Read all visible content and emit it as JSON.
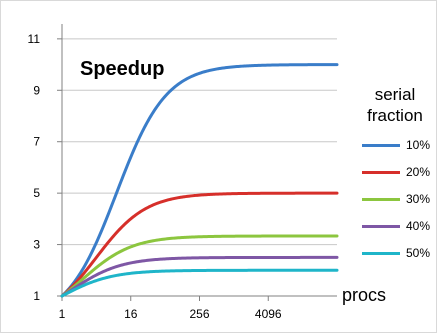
{
  "chart_data": {
    "type": "line",
    "title": "Speedup",
    "xlabel": "procs",
    "ylabel": "",
    "x_scale": "log2",
    "x_ticks": [
      "1",
      "16",
      "256",
      "4096"
    ],
    "x_tick_values": [
      1,
      16,
      256,
      4096
    ],
    "xlim": [
      1,
      65536
    ],
    "y_ticks": [
      "1",
      "3",
      "5",
      "7",
      "9",
      "11"
    ],
    "y_tick_values": [
      1,
      3,
      5,
      7,
      9,
      11
    ],
    "ylim": [
      1,
      11.5
    ],
    "grid": "horizontal",
    "legend_title": [
      "serial",
      "fraction"
    ],
    "legend_position": "right",
    "series": [
      {
        "name": "10%",
        "color": "#3a7dc9",
        "serial_fraction": 0.1
      },
      {
        "name": "20%",
        "color": "#d62f2a",
        "serial_fraction": 0.2
      },
      {
        "name": "30%",
        "color": "#8cc63f",
        "serial_fraction": 0.3
      },
      {
        "name": "40%",
        "color": "#7e57a5",
        "serial_fraction": 0.4
      },
      {
        "name": "50%",
        "color": "#1fb5c9",
        "serial_fraction": 0.5
      }
    ]
  }
}
